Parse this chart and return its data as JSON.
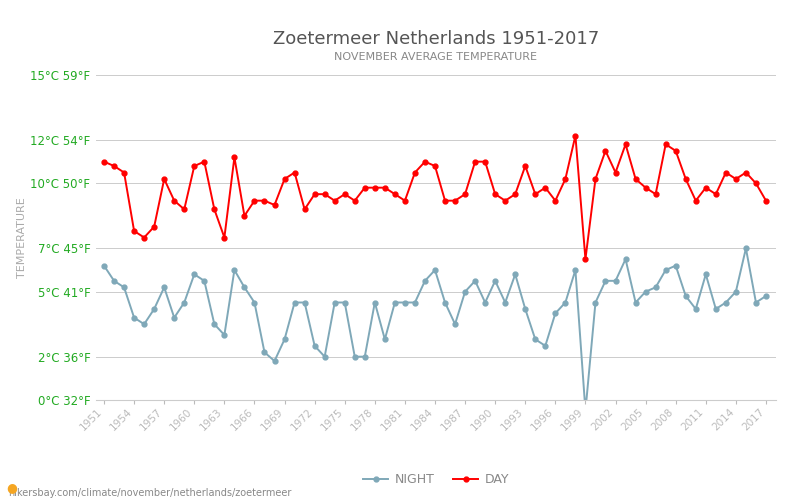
{
  "title": "Zoetermeer Netherlands 1951-2017",
  "subtitle": "NOVEMBER AVERAGE TEMPERATURE",
  "ylabel": "TEMPERATURE",
  "xlabel_url": "hikersbay.com/climate/november/netherlands/zoetermeer",
  "years": [
    1951,
    1952,
    1953,
    1954,
    1955,
    1956,
    1957,
    1958,
    1959,
    1960,
    1961,
    1962,
    1963,
    1964,
    1965,
    1966,
    1967,
    1968,
    1969,
    1970,
    1971,
    1972,
    1973,
    1974,
    1975,
    1976,
    1977,
    1978,
    1979,
    1980,
    1981,
    1982,
    1983,
    1984,
    1985,
    1986,
    1987,
    1988,
    1989,
    1990,
    1991,
    1992,
    1993,
    1994,
    1995,
    1996,
    1997,
    1998,
    1999,
    2000,
    2001,
    2002,
    2003,
    2004,
    2005,
    2006,
    2007,
    2008,
    2009,
    2010,
    2011,
    2012,
    2013,
    2014,
    2015,
    2016,
    2017
  ],
  "day_temps": [
    11.0,
    10.8,
    10.5,
    7.8,
    7.5,
    8.0,
    10.2,
    9.2,
    8.8,
    10.8,
    11.0,
    8.8,
    7.5,
    11.2,
    8.5,
    9.2,
    9.2,
    9.0,
    10.2,
    10.5,
    8.8,
    9.5,
    9.5,
    9.2,
    9.5,
    9.2,
    9.8,
    9.8,
    9.8,
    9.5,
    9.2,
    10.5,
    11.0,
    10.8,
    9.2,
    9.2,
    9.5,
    11.0,
    11.0,
    9.5,
    9.2,
    9.5,
    10.8,
    9.5,
    9.8,
    9.2,
    10.2,
    12.2,
    6.5,
    10.2,
    11.5,
    10.5,
    11.8,
    10.2,
    9.8,
    9.5,
    11.8,
    11.5,
    10.2,
    9.2,
    9.8,
    9.5,
    10.5,
    10.2,
    10.5,
    10.0,
    9.2
  ],
  "night_temps": [
    6.2,
    5.5,
    5.2,
    3.8,
    3.5,
    4.2,
    5.2,
    3.8,
    4.5,
    5.8,
    5.5,
    3.5,
    3.0,
    6.0,
    5.2,
    4.5,
    2.2,
    1.8,
    2.8,
    4.5,
    4.5,
    2.5,
    2.0,
    4.5,
    4.5,
    2.0,
    2.0,
    4.5,
    2.8,
    4.5,
    4.5,
    4.5,
    5.5,
    6.0,
    4.5,
    3.5,
    5.0,
    5.5,
    4.5,
    5.5,
    4.5,
    5.8,
    4.2,
    2.8,
    2.5,
    4.0,
    4.5,
    6.0,
    -0.5,
    4.5,
    5.5,
    5.5,
    6.5,
    4.5,
    5.0,
    5.2,
    6.0,
    6.2,
    4.8,
    4.2,
    5.8,
    4.2,
    4.5,
    5.0,
    7.0,
    4.5,
    4.8
  ],
  "day_color": "#ff0000",
  "night_color": "#7fa8b8",
  "title_color": "#555555",
  "subtitle_color": "#888888",
  "tick_color": "#22aa22",
  "grid_color": "#cccccc",
  "background_color": "#ffffff",
  "ylim": [
    0,
    15
  ],
  "yticks_c": [
    0,
    2,
    5,
    7,
    10,
    12,
    15
  ],
  "ytick_labels": [
    "0°C 32°F",
    "2°C 36°F",
    "5°C 41°F",
    "7°C 45°F",
    "10°C 50°F",
    "12°C 54°F",
    "15°C 59°F"
  ],
  "legend_night": "NIGHT",
  "legend_day": "DAY",
  "marker_size": 3.5,
  "line_width": 1.4,
  "xtick_step": 3
}
